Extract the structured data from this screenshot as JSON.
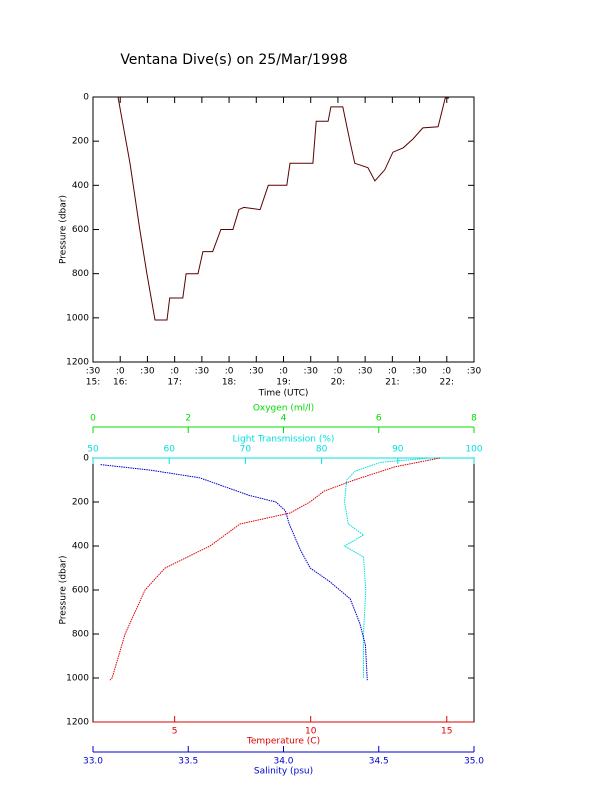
{
  "chart_data": [
    {
      "type": "line",
      "title": "Ventana Dive(s) on 25/Mar/1998",
      "xlabel": "Time (UTC)",
      "ylabel": "Pressure (dbar)",
      "xlim": [
        15.5,
        22.5
      ],
      "xticks": [
        {
          "value": 15.5,
          "label": ":30",
          "hour": "15:"
        },
        {
          "value": 16,
          "label": ":0",
          "hour": "16:"
        },
        {
          "value": 16.5,
          "label": ":30"
        },
        {
          "value": 17,
          "label": ":0",
          "hour": "17:"
        },
        {
          "value": 17.5,
          "label": ":30"
        },
        {
          "value": 18,
          "label": ":0",
          "hour": "18:"
        },
        {
          "value": 18.5,
          "label": ":30"
        },
        {
          "value": 19,
          "label": ":0",
          "hour": "19:"
        },
        {
          "value": 19.5,
          "label": ":30"
        },
        {
          "value": 20,
          "label": ":0",
          "hour": "20:"
        },
        {
          "value": 20.5,
          "label": ":30"
        },
        {
          "value": 21,
          "label": ":0",
          "hour": "21:"
        },
        {
          "value": 21.5,
          "label": ":30"
        },
        {
          "value": 22,
          "label": ":0",
          "hour": "22:"
        },
        {
          "value": 22.5,
          "label": ":30"
        }
      ],
      "ylim": [
        0,
        1200
      ],
      "y_inverted": true,
      "yticks": [
        0,
        200,
        400,
        600,
        800,
        1000,
        1200
      ],
      "series": [
        {
          "color": "#5a0000",
          "x": [
            15.96,
            16.18,
            16.36,
            16.49,
            16.64,
            16.86,
            16.91,
            17.15,
            17.21,
            17.43,
            17.52,
            17.7,
            17.85,
            18.07,
            18.18,
            18.27,
            18.57,
            18.72,
            19.06,
            19.12,
            19.54,
            19.6,
            19.82,
            19.87,
            20.09,
            20.22,
            20.31,
            20.55,
            20.68,
            20.86,
            21.01,
            21.2,
            21.38,
            21.56,
            21.84,
            21.97,
            22.04
          ],
          "values": [
            0,
            300,
            600,
            800,
            1010,
            1010,
            910,
            910,
            800,
            800,
            700,
            700,
            600,
            600,
            510,
            500,
            510,
            400,
            400,
            300,
            300,
            110,
            110,
            45,
            45,
            200,
            300,
            320,
            380,
            330,
            250,
            230,
            190,
            140,
            135,
            5,
            5
          ]
        }
      ]
    },
    {
      "type": "profile",
      "ylabel": "Pressure (dbar)",
      "ylim": [
        0,
        1200
      ],
      "y_inverted": true,
      "yticks": [
        0,
        200,
        400,
        600,
        800,
        1000,
        1200
      ],
      "x_axes": [
        {
          "label": "Oxygen (ml/l)",
          "color": "#00dd00",
          "lim": [
            0,
            8
          ],
          "ticks": [
            0,
            2,
            4,
            6,
            8
          ]
        },
        {
          "label": "Light Transmission (%)",
          "color": "#00e0e0",
          "lim": [
            50,
            100
          ],
          "ticks": [
            50,
            60,
            70,
            80,
            90,
            100
          ]
        },
        {
          "label": "Temperature (C)",
          "color": "#dd0000",
          "lim": [
            2,
            16
          ],
          "ticks": [
            5,
            10,
            15
          ]
        },
        {
          "label": "Salinity (psu)",
          "color": "#0000cc",
          "lim": [
            33,
            35
          ],
          "ticks": [
            {
              "value": 33,
              "label": "33.0"
            },
            33.5,
            {
              "value": 34,
              "label": "34.0"
            },
            34.5,
            {
              "value": 35,
              "label": "35.0"
            }
          ]
        }
      ],
      "series": [
        {
          "axis": 1,
          "color": "#00e0e0",
          "x": [
            94.2,
            87.7,
            84.4,
            83.3,
            83.0,
            83.5,
            85.5,
            83.0,
            85.5,
            85.8,
            85.5,
            85.5
          ],
          "y": [
            0,
            20,
            60,
            100,
            200,
            300,
            350,
            400,
            450,
            600,
            800,
            1000
          ]
        },
        {
          "axis": 2,
          "color": "#dd0000",
          "x": [
            14.75,
            13.1,
            11.6,
            10.5,
            9.97,
            9.24,
            7.4,
            6.3,
            4.65,
            3.91,
            3.18,
            2.7,
            2.62
          ],
          "y": [
            0,
            40,
            100,
            150,
            200,
            250,
            300,
            400,
            500,
            600,
            800,
            1000,
            1010
          ]
        },
        {
          "axis": 3,
          "color": "#0000cc",
          "x": [
            33.04,
            33.3,
            33.56,
            33.82,
            33.96,
            34.01,
            34.03,
            34.07,
            34.09,
            34.14,
            34.24,
            34.35,
            34.4,
            34.43,
            34.44
          ],
          "y": [
            30,
            55,
            90,
            170,
            200,
            240,
            300,
            380,
            420,
            500,
            560,
            640,
            750,
            850,
            1010
          ]
        }
      ]
    }
  ]
}
